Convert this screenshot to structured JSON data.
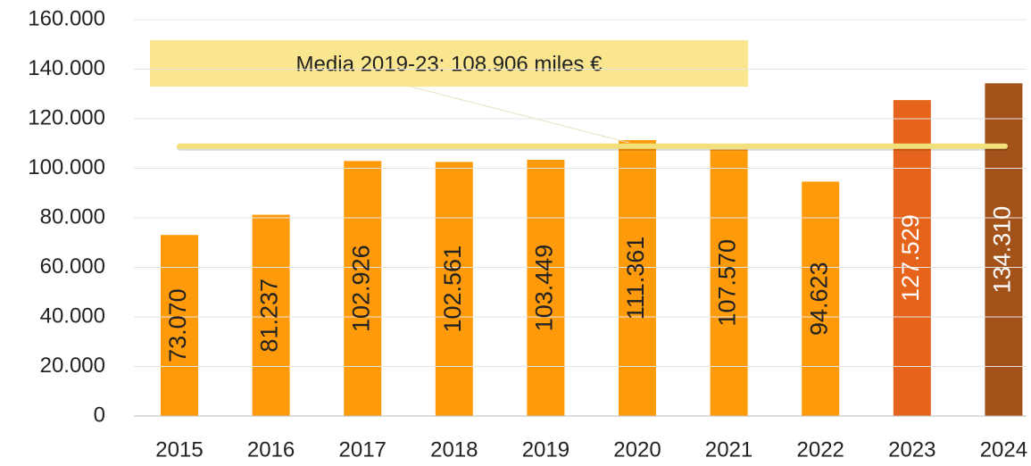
{
  "chart_data": {
    "type": "bar",
    "categories": [
      "2015",
      "2016",
      "2017",
      "2018",
      "2019",
      "2020",
      "2021",
      "2022",
      "2023",
      "2024"
    ],
    "values": [
      73070,
      81237,
      102926,
      102561,
      103449,
      111361,
      107570,
      94623,
      127529,
      134310
    ],
    "value_labels": [
      "73.070",
      "81.237",
      "102.926",
      "102.561",
      "103.449",
      "111.361",
      "107.570",
      "94.623",
      "127.529",
      "134.310"
    ],
    "colors": [
      "#ff9a0a",
      "#ff9a0a",
      "#ff9a0a",
      "#ff9a0a",
      "#ff9a0a",
      "#ff9a0a",
      "#ff9a0a",
      "#ff9a0a",
      "#e5631a",
      "#a3521a"
    ],
    "label_colors": [
      "#222222",
      "#222222",
      "#222222",
      "#222222",
      "#222222",
      "#222222",
      "#222222",
      "#222222",
      "#ffffff",
      "#ffffff"
    ],
    "ylim": [
      0,
      160000
    ],
    "yticks": [
      0,
      {
        "value": 20000,
        "label": "20.000"
      },
      {
        "value": 40000,
        "label": "40.000"
      },
      {
        "value": 60000,
        "label": "60.000"
      },
      {
        "value": 80000,
        "label": "80.000"
      },
      {
        "value": 100000,
        "label": "100.000"
      },
      {
        "value": 120000,
        "label": "120.000"
      },
      {
        "value": 140000,
        "label": "140.000"
      },
      {
        "value": 160000,
        "label": "160.000"
      }
    ],
    "grid": true,
    "mean_line": {
      "value": 108906,
      "label": "Media 2019-23: 108.906 miles €",
      "color": "#f2e07a"
    }
  }
}
